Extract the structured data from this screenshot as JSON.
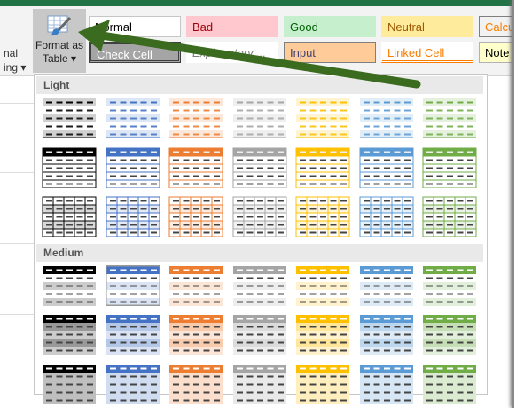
{
  "ribbon": {
    "left_label_line1": "nal",
    "left_label_line2": "ing ▾",
    "format_as_table": {
      "line1": "Format as",
      "line2": "Table ▾",
      "icon": "table-paintbrush-icon"
    },
    "cell_styles": [
      {
        "label": "Normal",
        "bg": "#ffffff",
        "color": "#000000",
        "border": "#c6c6c6"
      },
      {
        "label": "Bad",
        "bg": "#ffc7ce",
        "color": "#9c0006",
        "border": "#ffc7ce"
      },
      {
        "label": "Good",
        "bg": "#c6efce",
        "color": "#006100",
        "border": "#c6efce"
      },
      {
        "label": "Neutral",
        "bg": "#ffeb9c",
        "color": "#9c5700",
        "border": "#ffeb9c"
      },
      {
        "label": "Calcu",
        "bg": "#f2f2f2",
        "color": "#fa7d00",
        "border": "#7f7f7f"
      },
      {
        "label": "Check Cell",
        "bg": "#a5a5a5",
        "color": "#ffffff",
        "border": "#3f3f3f"
      },
      {
        "label": "Explanatory ...",
        "bg": "#ffffff",
        "color": "#7f7f7f",
        "border": "#ffffff"
      },
      {
        "label": "Input",
        "bg": "#ffcc99",
        "color": "#3f3f76",
        "border": "#7f7f7f"
      },
      {
        "label": "Linked Cell",
        "bg": "#ffffff",
        "color": "#fa7d00",
        "border": "#ffffff"
      },
      {
        "label": "Note",
        "bg": "#ffffcc",
        "color": "#000000",
        "border": "#b2b2b2"
      }
    ]
  },
  "gallery": {
    "sections": [
      {
        "label": "Light"
      },
      {
        "label": "Medium"
      }
    ],
    "theme_colors": [
      "#000000",
      "#4472c4",
      "#ed7d31",
      "#a5a5a5",
      "#ffc000",
      "#5b9bd5",
      "#70ad47"
    ]
  },
  "annotation": {
    "arrow_color": "#3a6b1e"
  }
}
